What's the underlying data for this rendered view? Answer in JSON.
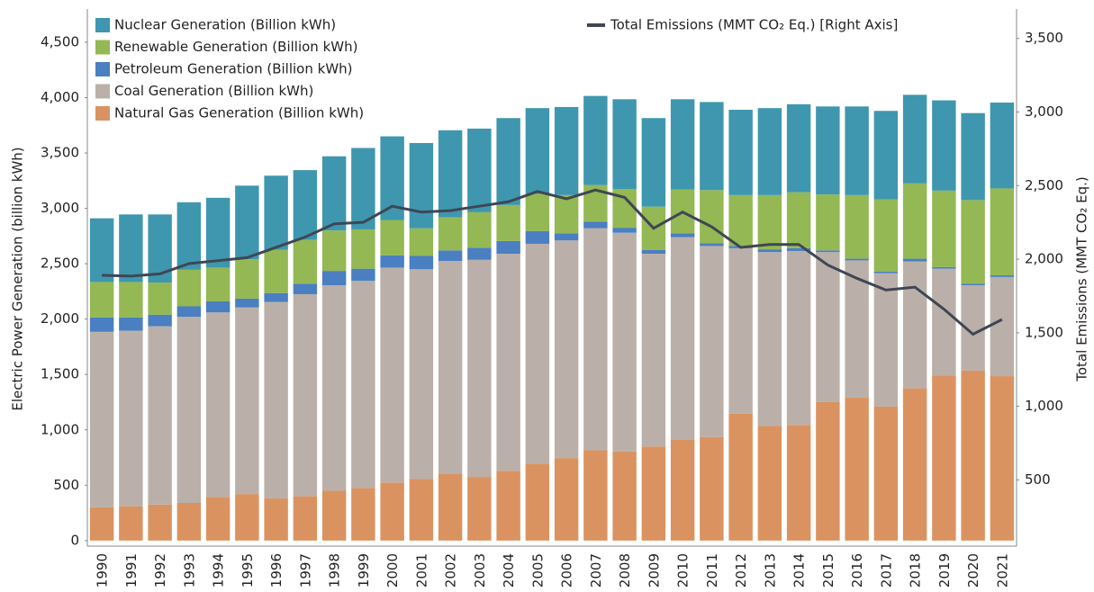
{
  "chart_data": {
    "type": "bar",
    "y_label": "Electric Power Generation (billion kWh)",
    "y2_label": "Total Emissions (MMT CO₂ Eq.)",
    "categories": [
      "1990",
      "1991",
      "1992",
      "1993",
      "1994",
      "1995",
      "1996",
      "1997",
      "1998",
      "1999",
      "2000",
      "2001",
      "2002",
      "2003",
      "2004",
      "2005",
      "2006",
      "2007",
      "2008",
      "2009",
      "2010",
      "2011",
      "2012",
      "2013",
      "2014",
      "2015",
      "2016",
      "2017",
      "2018",
      "2019",
      "2020",
      "2021"
    ],
    "series": [
      {
        "name": "Natural Gas Generation (Billion kWh)",
        "color": "#da9360",
        "values": [
          300,
          310,
          325,
          340,
          395,
          420,
          380,
          400,
          450,
          475,
          525,
          555,
          605,
          575,
          630,
          695,
          745,
          815,
          805,
          850,
          915,
          935,
          1145,
          1035,
          1045,
          1250,
          1290,
          1210,
          1375,
          1490,
          1535,
          1485
        ]
      },
      {
        "name": "Coal Generation (Billion kWh)",
        "color": "#bab0a9",
        "values": [
          1585,
          1585,
          1610,
          1680,
          1665,
          1685,
          1775,
          1825,
          1855,
          1870,
          1940,
          1895,
          1920,
          1960,
          1960,
          1985,
          1965,
          2005,
          1975,
          1740,
          1825,
          1725,
          1495,
          1570,
          1570,
          1355,
          1240,
          1205,
          1145,
          965,
          770,
          895
        ]
      },
      {
        "name": "Petroleum Generation (Billion kWh)",
        "color": "#4a7fc1",
        "values": [
          130,
          120,
          105,
          95,
          100,
          80,
          80,
          95,
          130,
          110,
          110,
          120,
          95,
          110,
          115,
          115,
          65,
          60,
          45,
          35,
          35,
          25,
          20,
          25,
          25,
          15,
          15,
          15,
          25,
          15,
          15,
          15
        ]
      },
      {
        "name": "Renewable Generation (Billion kWh)",
        "color": "#94b853",
        "values": [
          320,
          320,
          290,
          330,
          305,
          355,
          390,
          395,
          365,
          355,
          320,
          250,
          300,
          320,
          325,
          335,
          345,
          330,
          350,
          390,
          395,
          480,
          460,
          490,
          505,
          505,
          575,
          650,
          680,
          690,
          755,
          785
        ]
      },
      {
        "name": "Nuclear Generation (Billion kWh)",
        "color": "#3e97ae",
        "values": [
          575,
          610,
          615,
          610,
          630,
          665,
          670,
          630,
          670,
          735,
          755,
          770,
          785,
          755,
          785,
          775,
          795,
          805,
          810,
          800,
          815,
          795,
          770,
          785,
          795,
          795,
          800,
          800,
          800,
          815,
          785,
          775
        ]
      },
      {
        "name": "Total Emissions (MMT CO₂ Eq.) [Right Axis]",
        "color": "#3f4654",
        "type": "line",
        "axis": "y2",
        "values": [
          1890,
          1885,
          1900,
          1970,
          1990,
          2010,
          2080,
          2150,
          2240,
          2250,
          2360,
          2320,
          2330,
          2360,
          2390,
          2460,
          2410,
          2470,
          2420,
          2210,
          2320,
          2220,
          2080,
          2100,
          2100,
          1960,
          1870,
          1790,
          1810,
          1660,
          1490,
          1590
        ]
      }
    ],
    "stacked": true,
    "ylim": [
      -50,
      4800
    ],
    "yticks": [
      0,
      500,
      {
        "value": 1000,
        "label": "1,000"
      },
      {
        "value": 1500,
        "label": "1,500"
      },
      {
        "value": 2000,
        "label": "2,000"
      },
      {
        "value": 2500,
        "label": "2,500"
      },
      {
        "value": 3000,
        "label": "3,000"
      },
      {
        "value": 3500,
        "label": "3,500"
      },
      {
        "value": 4000,
        "label": "4,000"
      },
      {
        "value": 4500,
        "label": "4,500"
      }
    ],
    "y2lim": [
      50,
      3700
    ],
    "y2ticks": [
      500,
      {
        "value": 1000,
        "label": "1,000"
      },
      {
        "value": 1500,
        "label": "1,500"
      },
      {
        "value": 2000,
        "label": "2,000"
      },
      {
        "value": 2500,
        "label": "2,500"
      },
      {
        "value": 3000,
        "label": "3,000"
      },
      {
        "value": 3500,
        "label": "3,500"
      }
    ],
    "grid": false
  }
}
